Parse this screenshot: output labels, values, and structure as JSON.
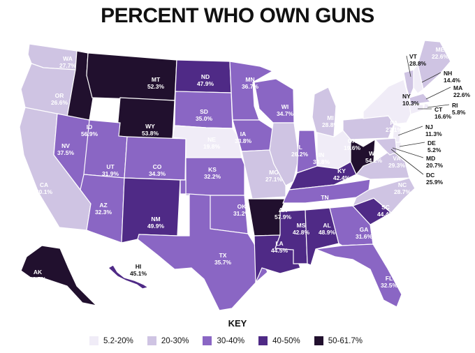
{
  "title": "PERCENT WHO OWN GUNS",
  "key_title": "KEY",
  "colors": {
    "c1": "#f0ecf7",
    "c2": "#cfc4e3",
    "c3": "#8a66c4",
    "c4": "#4f2a86",
    "c5": "#21102e",
    "border": "#ffffff",
    "callout_line": "#333333"
  },
  "legend": [
    {
      "label": "5.2-20%",
      "color": "#f0ecf7"
    },
    {
      "label": "20-30%",
      "color": "#cfc4e3"
    },
    {
      "label": "30-40%",
      "color": "#8a66c4"
    },
    {
      "label": "40-50%",
      "color": "#4f2a86"
    },
    {
      "label": "50-61.7%",
      "color": "#21102e"
    }
  ],
  "states": [
    {
      "abbr": "WA",
      "value": "27.7%"
    },
    {
      "abbr": "OR",
      "value": "26.6%"
    },
    {
      "abbr": "CA",
      "value": "20.1%"
    },
    {
      "abbr": "ID",
      "value": "56.9%"
    },
    {
      "abbr": "NV",
      "value": "37.5%"
    },
    {
      "abbr": "MT",
      "value": "52.3%"
    },
    {
      "abbr": "WY",
      "value": "53.8%"
    },
    {
      "abbr": "UT",
      "value": "31.9%"
    },
    {
      "abbr": "AZ",
      "value": "32.3%"
    },
    {
      "abbr": "CO",
      "value": "34.3%"
    },
    {
      "abbr": "NM",
      "value": "49.9%"
    },
    {
      "abbr": "ND",
      "value": "47.9%"
    },
    {
      "abbr": "SD",
      "value": "35.0%"
    },
    {
      "abbr": "NE",
      "value": "19.8%"
    },
    {
      "abbr": "KS",
      "value": "32.2%"
    },
    {
      "abbr": "OK",
      "value": "31.2%"
    },
    {
      "abbr": "TX",
      "value": "35.7%"
    },
    {
      "abbr": "MN",
      "value": "36.7%"
    },
    {
      "abbr": "IA",
      "value": "33.8%"
    },
    {
      "abbr": "MO",
      "value": "27.1%"
    },
    {
      "abbr": "AR",
      "value": "57.9%"
    },
    {
      "abbr": "LA",
      "value": "44.5%"
    },
    {
      "abbr": "WI",
      "value": "34.7%"
    },
    {
      "abbr": "IL",
      "value": "26.2%"
    },
    {
      "abbr": "MI",
      "value": "28.8%"
    },
    {
      "abbr": "IN",
      "value": "33.8%"
    },
    {
      "abbr": "OH",
      "value": "19.6%"
    },
    {
      "abbr": "KY",
      "value": "42.4%"
    },
    {
      "abbr": "TN",
      "value": "39.4%"
    },
    {
      "abbr": "MS",
      "value": "42.8%"
    },
    {
      "abbr": "AL",
      "value": "48.9%"
    },
    {
      "abbr": "GA",
      "value": "31.6%"
    },
    {
      "abbr": "FL",
      "value": "32.5%"
    },
    {
      "abbr": "SC",
      "value": "44.4%"
    },
    {
      "abbr": "NC",
      "value": "28.7%"
    },
    {
      "abbr": "VA",
      "value": "29.3%"
    },
    {
      "abbr": "WV",
      "value": "54.2%"
    },
    {
      "abbr": "PA",
      "value": "27.1%"
    },
    {
      "abbr": "NY",
      "value": "10.3%"
    },
    {
      "abbr": "VT",
      "value": "28.8%"
    },
    {
      "abbr": "NH",
      "value": "14.4%"
    },
    {
      "abbr": "ME",
      "value": "22.6%"
    },
    {
      "abbr": "MA",
      "value": "22.6%"
    },
    {
      "abbr": "RI",
      "value": "5.8%"
    },
    {
      "abbr": "CT",
      "value": "16.6%"
    },
    {
      "abbr": "NJ",
      "value": "11.3%"
    },
    {
      "abbr": "DE",
      "value": "5.2%"
    },
    {
      "abbr": "MD",
      "value": "20.7%"
    },
    {
      "abbr": "DC",
      "value": "25.9%"
    },
    {
      "abbr": "AK",
      "value": "61.7%"
    },
    {
      "abbr": "HI",
      "value": "45.1%"
    }
  ]
}
